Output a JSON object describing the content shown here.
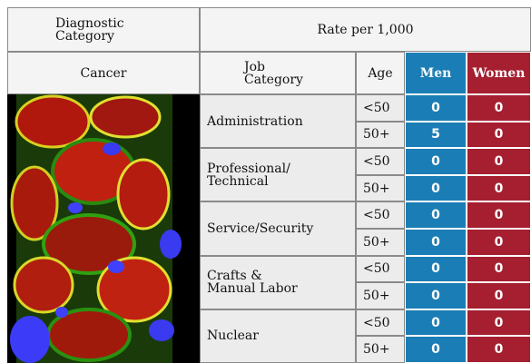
{
  "header": {
    "diagnostic_category": "Diagnostic\nCategory",
    "rate": "Rate per 1,000"
  },
  "subheader": {
    "cancer": "Cancer",
    "job": "Job\nCategory",
    "age": "Age",
    "men": "Men",
    "women": "Women"
  },
  "rows": [
    {
      "job": "Administration",
      "ages": [
        {
          "age": "<50",
          "men": 0,
          "women": 0
        },
        {
          "age": "50+",
          "men": 5,
          "women": 0
        }
      ]
    },
    {
      "job": "Professional/\nTechnical",
      "ages": [
        {
          "age": "<50",
          "men": 0,
          "women": 0
        },
        {
          "age": "50+",
          "men": 0,
          "women": 0
        }
      ]
    },
    {
      "job": "Service/Security",
      "ages": [
        {
          "age": "<50",
          "men": 0,
          "women": 0
        },
        {
          "age": "50+",
          "men": 0,
          "women": 0
        }
      ]
    },
    {
      "job": "Crafts &\nManual Labor",
      "ages": [
        {
          "age": "<50",
          "men": 0,
          "women": 0
        },
        {
          "age": "50+",
          "men": 0,
          "women": 0
        }
      ]
    },
    {
      "job": "Nuclear",
      "ages": [
        {
          "age": "<50",
          "men": 0,
          "women": 0
        },
        {
          "age": "50+",
          "men": 0,
          "women": 0
        }
      ]
    }
  ]
}
